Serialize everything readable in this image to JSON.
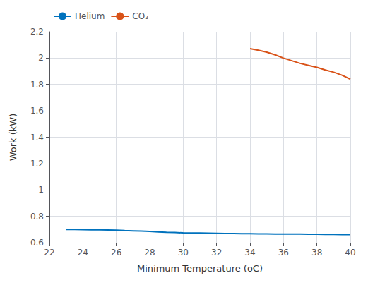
{
  "chart_data": {
    "type": "line",
    "xlabel": "Minimum Temperature (oC)",
    "ylabel": "Work (kW)",
    "xlim": [
      22,
      40
    ],
    "ylim": [
      0.6,
      2.2
    ],
    "xticks": [
      22,
      24,
      26,
      28,
      30,
      32,
      34,
      36,
      38,
      40
    ],
    "yticks": [
      0.6,
      0.8,
      1,
      1.2,
      1.4,
      1.6,
      1.8,
      2,
      2.2
    ],
    "grid": true,
    "legend": "upper left",
    "series": [
      {
        "name": "Helium",
        "color": "#0072BD",
        "x": [
          23,
          23.5,
          24,
          24.5,
          25,
          25.5,
          26,
          26.5,
          27,
          27.5,
          28,
          28.5,
          29,
          29.5,
          30,
          30.5,
          31,
          31.5,
          32,
          32.5,
          33,
          33.5,
          34,
          34.5,
          35,
          35.5,
          36,
          36.5,
          37,
          37.5,
          38,
          38.5,
          39,
          39.5,
          40
        ],
        "values": [
          0.7,
          0.7,
          0.699,
          0.698,
          0.697,
          0.696,
          0.695,
          0.692,
          0.69,
          0.688,
          0.685,
          0.682,
          0.679,
          0.677,
          0.675,
          0.674,
          0.673,
          0.672,
          0.671,
          0.67,
          0.669,
          0.668,
          0.668,
          0.667,
          0.667,
          0.666,
          0.666,
          0.665,
          0.665,
          0.664,
          0.664,
          0.663,
          0.663,
          0.662,
          0.662
        ]
      },
      {
        "name": "CO₂",
        "color": "#D95319",
        "x": [
          34,
          34.5,
          35,
          35.5,
          36,
          36.5,
          37,
          37.5,
          38,
          38.5,
          39,
          39.5,
          40
        ],
        "values": [
          2.072,
          2.06,
          2.045,
          2.025,
          2.0,
          1.98,
          1.96,
          1.945,
          1.93,
          1.91,
          1.893,
          1.87,
          1.84
        ]
      }
    ]
  }
}
